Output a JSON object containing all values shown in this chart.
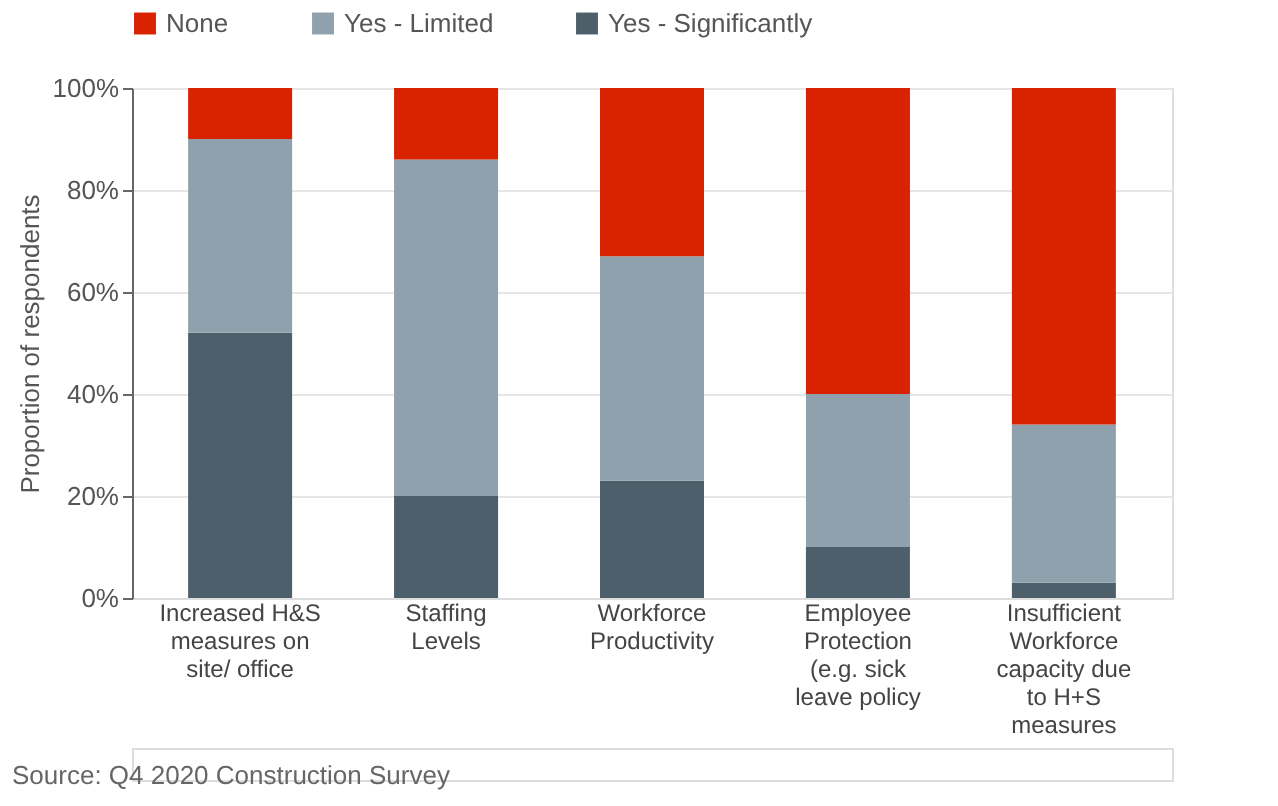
{
  "chart_data": {
    "type": "bar",
    "stacked": true,
    "categories": [
      "Increased H&S measures on site/ office",
      "Staffing Levels",
      "Workforce Productivity",
      "Employee Protection (e.g. sick leave policy",
      "Insufficient Workforce capacity due to H+S measures"
    ],
    "series": [
      {
        "name": "Yes - Significantly",
        "color": "#4d5f6b",
        "values": [
          52,
          20,
          23,
          10,
          3
        ]
      },
      {
        "name": "Yes - Limited",
        "color": "#8fa1ac",
        "values": [
          38,
          66,
          44,
          30,
          31
        ]
      },
      {
        "name": "None",
        "color": "#d92200",
        "values": [
          10,
          14,
          33,
          60,
          66
        ]
      }
    ],
    "ylabel": "Proportion of respondents",
    "ylim": [
      0,
      100
    ],
    "yticks": [
      {
        "value": 0,
        "label": "0%"
      },
      {
        "value": 20,
        "label": "20%"
      },
      {
        "value": 40,
        "label": "40%"
      },
      {
        "value": 60,
        "label": "60%"
      },
      {
        "value": 80,
        "label": "80%"
      },
      {
        "value": 100,
        "label": "100%"
      }
    ],
    "grid": "y",
    "legend": "top",
    "annotations": [
      "Source: Q4 2020 Construction Survey"
    ]
  }
}
